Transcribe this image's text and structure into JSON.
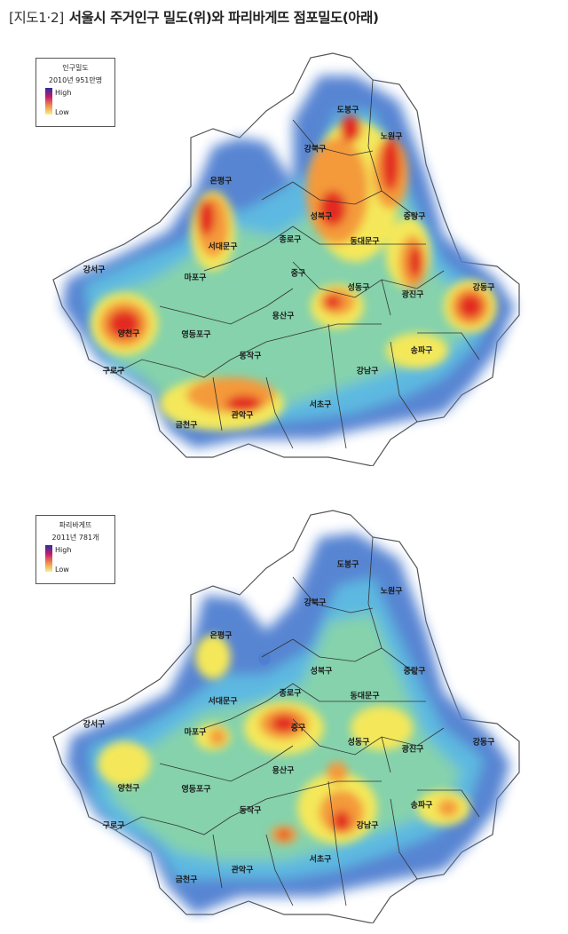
{
  "title": {
    "figure_no": "[지도1·2]",
    "text": "서울시 주거인구 밀도(위)와 파리바게뜨 점포밀도(아래)"
  },
  "maps": [
    {
      "legend": {
        "title": "인구밀도",
        "subtitle": "2010년 951만명",
        "high": "High",
        "low": "Low"
      },
      "colors": [
        "#2b2fa0",
        "#c21b6e",
        "#f08d4a",
        "#f6f08a"
      ]
    },
    {
      "legend": {
        "title": "파리바게뜨",
        "subtitle": "2011년 781개",
        "high": "High",
        "low": "Low"
      },
      "colors": [
        "#2b2fa0",
        "#c21b6e",
        "#f08d4a",
        "#f6f08a"
      ]
    }
  ],
  "districts": [
    "도봉구",
    "노원구",
    "강북구",
    "은평구",
    "성북구",
    "중랑구",
    "종로구",
    "동대문구",
    "서대문구",
    "강서구",
    "마포구",
    "중구",
    "성동구",
    "광진구",
    "강동구",
    "용산구",
    "양천구",
    "영등포구",
    "동작구",
    "송파구",
    "구로구",
    "강남구",
    "서초구",
    "관악구",
    "금천구"
  ]
}
